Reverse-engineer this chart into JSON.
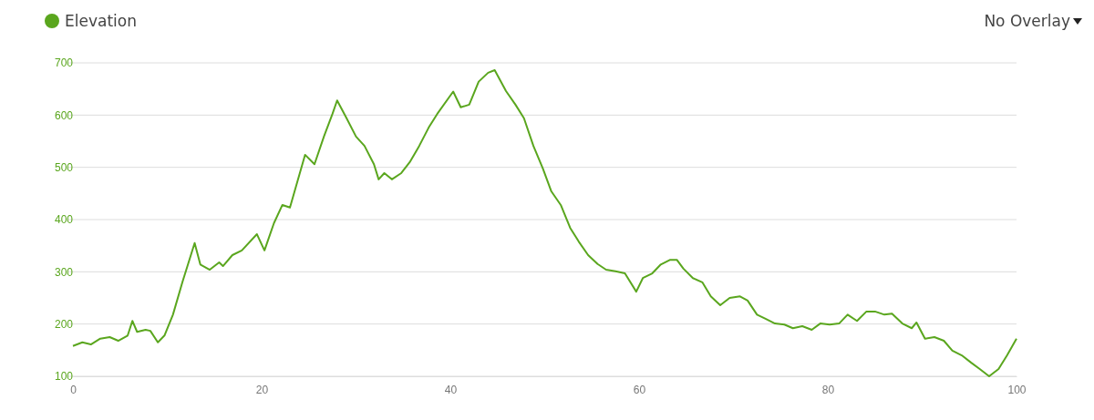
{
  "chart_data": {
    "type": "line",
    "legend": "top left",
    "grid": "y",
    "marker": "none",
    "line_style": "solid",
    "xlim": [
      0,
      100
    ],
    "ylim": [
      100,
      700
    ],
    "xticks": [
      0,
      20,
      40,
      60,
      80,
      100
    ],
    "yticks": [
      100,
      200,
      300,
      400,
      500,
      600,
      700
    ],
    "annotations": [
      "No Overlay"
    ],
    "x": [
      0,
      1,
      1.9,
      2.9,
      3.9,
      4.8,
      5.8,
      6.3,
      6.8,
      7.7,
      8.2,
      9,
      9.7,
      10.6,
      11.6,
      12.9,
      13.5,
      14.5,
      15.5,
      15.9,
      16.9,
      17.9,
      19.5,
      20.3,
      21.3,
      22.2,
      23,
      24.6,
      25.6,
      26.6,
      27.5,
      28,
      29,
      30,
      30.9,
      31.9,
      32.4,
      33,
      33.8,
      34.8,
      35.7,
      36.7,
      37.7,
      38.6,
      40.3,
      41.1,
      42,
      43,
      44,
      44.7,
      45.9,
      46.9,
      47.8,
      48.8,
      49.8,
      50.7,
      51.7,
      52.7,
      53.6,
      54.6,
      55.6,
      56.5,
      57.5,
      58.5,
      59.7,
      60.4,
      61.4,
      62.3,
      63.3,
      64,
      64.7,
      65.7,
      66.7,
      67.6,
      68.6,
      69.6,
      70.7,
      71.5,
      72.5,
      73.4,
      74.4,
      75.4,
      76.3,
      77.3,
      78.3,
      79.2,
      80.2,
      81.2,
      82.1,
      83.1,
      84.1,
      85,
      86,
      86.8,
      87.9,
      88.9,
      89.4,
      90.3,
      91.3,
      92.3,
      93.2,
      94.2,
      95.2,
      96.1,
      97.1,
      98.1,
      99,
      100
    ],
    "series": [
      {
        "name": "Elevation",
        "color": "#5aa61e",
        "values": [
          158,
          165,
          161,
          172,
          175,
          168,
          178,
          206,
          185,
          189,
          187,
          165,
          178,
          218,
          280,
          355,
          314,
          304,
          318,
          311,
          332,
          341,
          372,
          341,
          393,
          428,
          423,
          524,
          506,
          559,
          602,
          628,
          594,
          559,
          541,
          506,
          477,
          489,
          477,
          489,
          510,
          541,
          576,
          602,
          645,
          615,
          620,
          664,
          681,
          686,
          646,
          620,
          594,
          541,
          498,
          454,
          428,
          384,
          358,
          332,
          315,
          304,
          301,
          297,
          262,
          288,
          297,
          314,
          323,
          323,
          306,
          288,
          280,
          253,
          236,
          250,
          253,
          245,
          218,
          210,
          201,
          199,
          192,
          196,
          189,
          201,
          199,
          201,
          218,
          206,
          224,
          224,
          218,
          220,
          201,
          192,
          203,
          172,
          175,
          168,
          149,
          140,
          126,
          114,
          100,
          114,
          140,
          172
        ]
      }
    ]
  }
}
